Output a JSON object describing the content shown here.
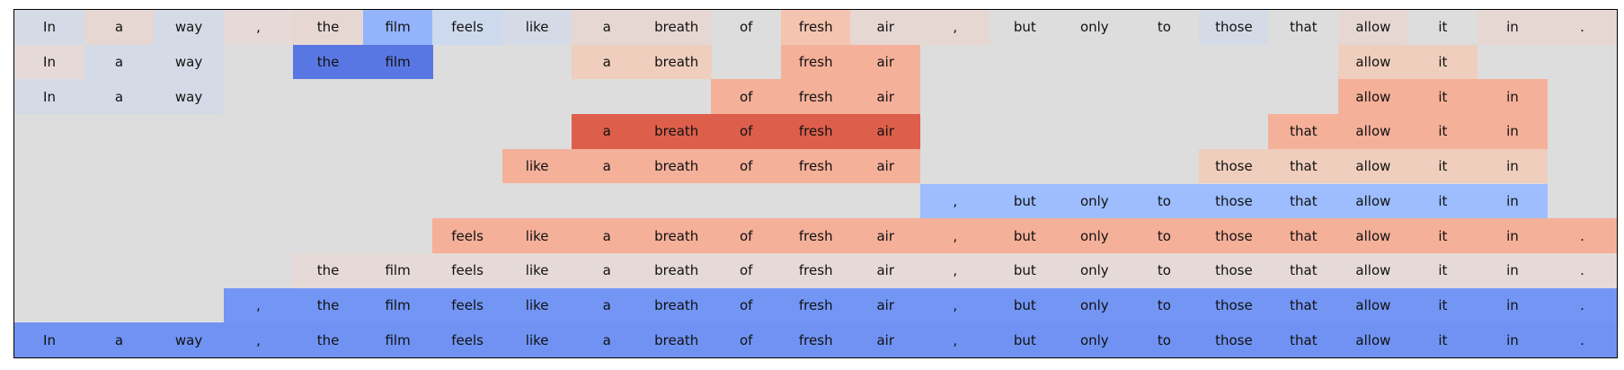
{
  "chart_data": {
    "type": "heatmap",
    "tokens": [
      "In",
      "a",
      "way",
      ",",
      "the",
      "film",
      "feels",
      "like",
      "a",
      "breath",
      "of",
      "fresh",
      "air",
      ",",
      "but",
      "only",
      "to",
      "those",
      "that",
      "allow",
      "it",
      "in",
      "."
    ],
    "rows": [
      [
        "#d4dbe6",
        "#e6d7d2",
        "#d4dbe6",
        "#e5dad7",
        "#e6d7d2",
        "#93b4fb",
        "#cdd9ec",
        "#d4dbe6",
        "#e6d7d2",
        "#e6d7d2",
        "#dddddd",
        "#f4c4b0",
        "#e6d7d2",
        "#e6d7d2",
        "#dddddd",
        "#dddddd",
        "#dddddd",
        "#d4dbe6",
        "#dddddd",
        "#e6d7d2",
        "#dddddd",
        "#e6d7d2",
        "#e6d7d2"
      ],
      [
        "#e5dad7",
        "#d4dbe6",
        "#d4dbe6",
        null,
        "#5977e3",
        "#5977e3",
        null,
        null,
        "#efcebd",
        "#efcebd",
        null,
        "#f5b09a",
        "#f5b09a",
        null,
        null,
        null,
        null,
        null,
        null,
        "#efcebd",
        "#efcebd",
        null,
        null
      ],
      [
        "#d4dbe6",
        "#d4dbe6",
        "#d4dbe6",
        null,
        null,
        null,
        null,
        null,
        null,
        null,
        "#f5b09a",
        "#f5b09a",
        "#f5b09a",
        null,
        null,
        null,
        null,
        null,
        null,
        "#f5b09a",
        "#f5b09a",
        "#f5b09a",
        null
      ],
      [
        null,
        null,
        null,
        null,
        null,
        null,
        null,
        null,
        "#dd5f4b",
        "#dd5f4b",
        "#dd5f4b",
        "#dd5f4b",
        "#dd5f4b",
        null,
        null,
        null,
        null,
        null,
        "#f5b09a",
        "#f5b09a",
        "#f5b09a",
        "#f5b09a",
        null
      ],
      [
        null,
        null,
        null,
        null,
        null,
        null,
        null,
        "#f5b09a",
        "#f5b09a",
        "#f5b09a",
        "#f5b09a",
        "#f5b09a",
        "#f5b09a",
        null,
        null,
        null,
        null,
        "#efcebd",
        "#efcebd",
        "#efcebd",
        "#efcebd",
        "#efcebd",
        null
      ],
      [
        null,
        null,
        null,
        null,
        null,
        null,
        null,
        null,
        null,
        null,
        null,
        null,
        null,
        "#9dbdff",
        "#9dbdff",
        "#9dbdff",
        "#9dbdff",
        "#9dbdff",
        "#9dbdff",
        "#9dbdff",
        "#9dbdff",
        "#9dbdff",
        null
      ],
      [
        null,
        null,
        null,
        null,
        null,
        null,
        "#f5b09a",
        "#f5b09a",
        "#f5b09a",
        "#f5b09a",
        "#f5b09a",
        "#f5b09a",
        "#f5b09a",
        "#f5b09a",
        "#f5b09a",
        "#f5b09a",
        "#f5b09a",
        "#f5b09a",
        "#f5b09a",
        "#f5b09a",
        "#f5b09a",
        "#f5b09a",
        "#f5b09a"
      ],
      [
        null,
        null,
        null,
        null,
        "#e5dad7",
        "#e5dad7",
        "#e5dad7",
        "#e5dad7",
        "#e5dad7",
        "#e5dad7",
        "#e5dad7",
        "#e5dad7",
        "#e5dad7",
        "#e5dad7",
        "#e5dad7",
        "#e5dad7",
        "#e5dad7",
        "#e5dad7",
        "#e5dad7",
        "#e5dad7",
        "#e5dad7",
        "#e5dad7",
        "#e5dad7"
      ],
      [
        null,
        null,
        null,
        "#7396f5",
        "#7396f5",
        "#7396f5",
        "#7396f5",
        "#7396f5",
        "#7396f5",
        "#7396f5",
        "#7396f5",
        "#7396f5",
        "#7396f5",
        "#7396f5",
        "#7396f5",
        "#7396f5",
        "#7396f5",
        "#7396f5",
        "#7396f5",
        "#7396f5",
        "#7396f5",
        "#7396f5",
        "#7396f5"
      ],
      [
        "#7093f3",
        "#7093f3",
        "#7093f3",
        "#7093f3",
        "#7093f3",
        "#7093f3",
        "#7093f3",
        "#7093f3",
        "#7093f3",
        "#7093f3",
        "#7093f3",
        "#7093f3",
        "#7093f3",
        "#7093f3",
        "#7093f3",
        "#7093f3",
        "#7093f3",
        "#7093f3",
        "#7093f3",
        "#7093f3",
        "#7093f3",
        "#7093f3",
        "#7093f3"
      ]
    ],
    "background_color": "#dddddd",
    "border_color": "#000000"
  }
}
